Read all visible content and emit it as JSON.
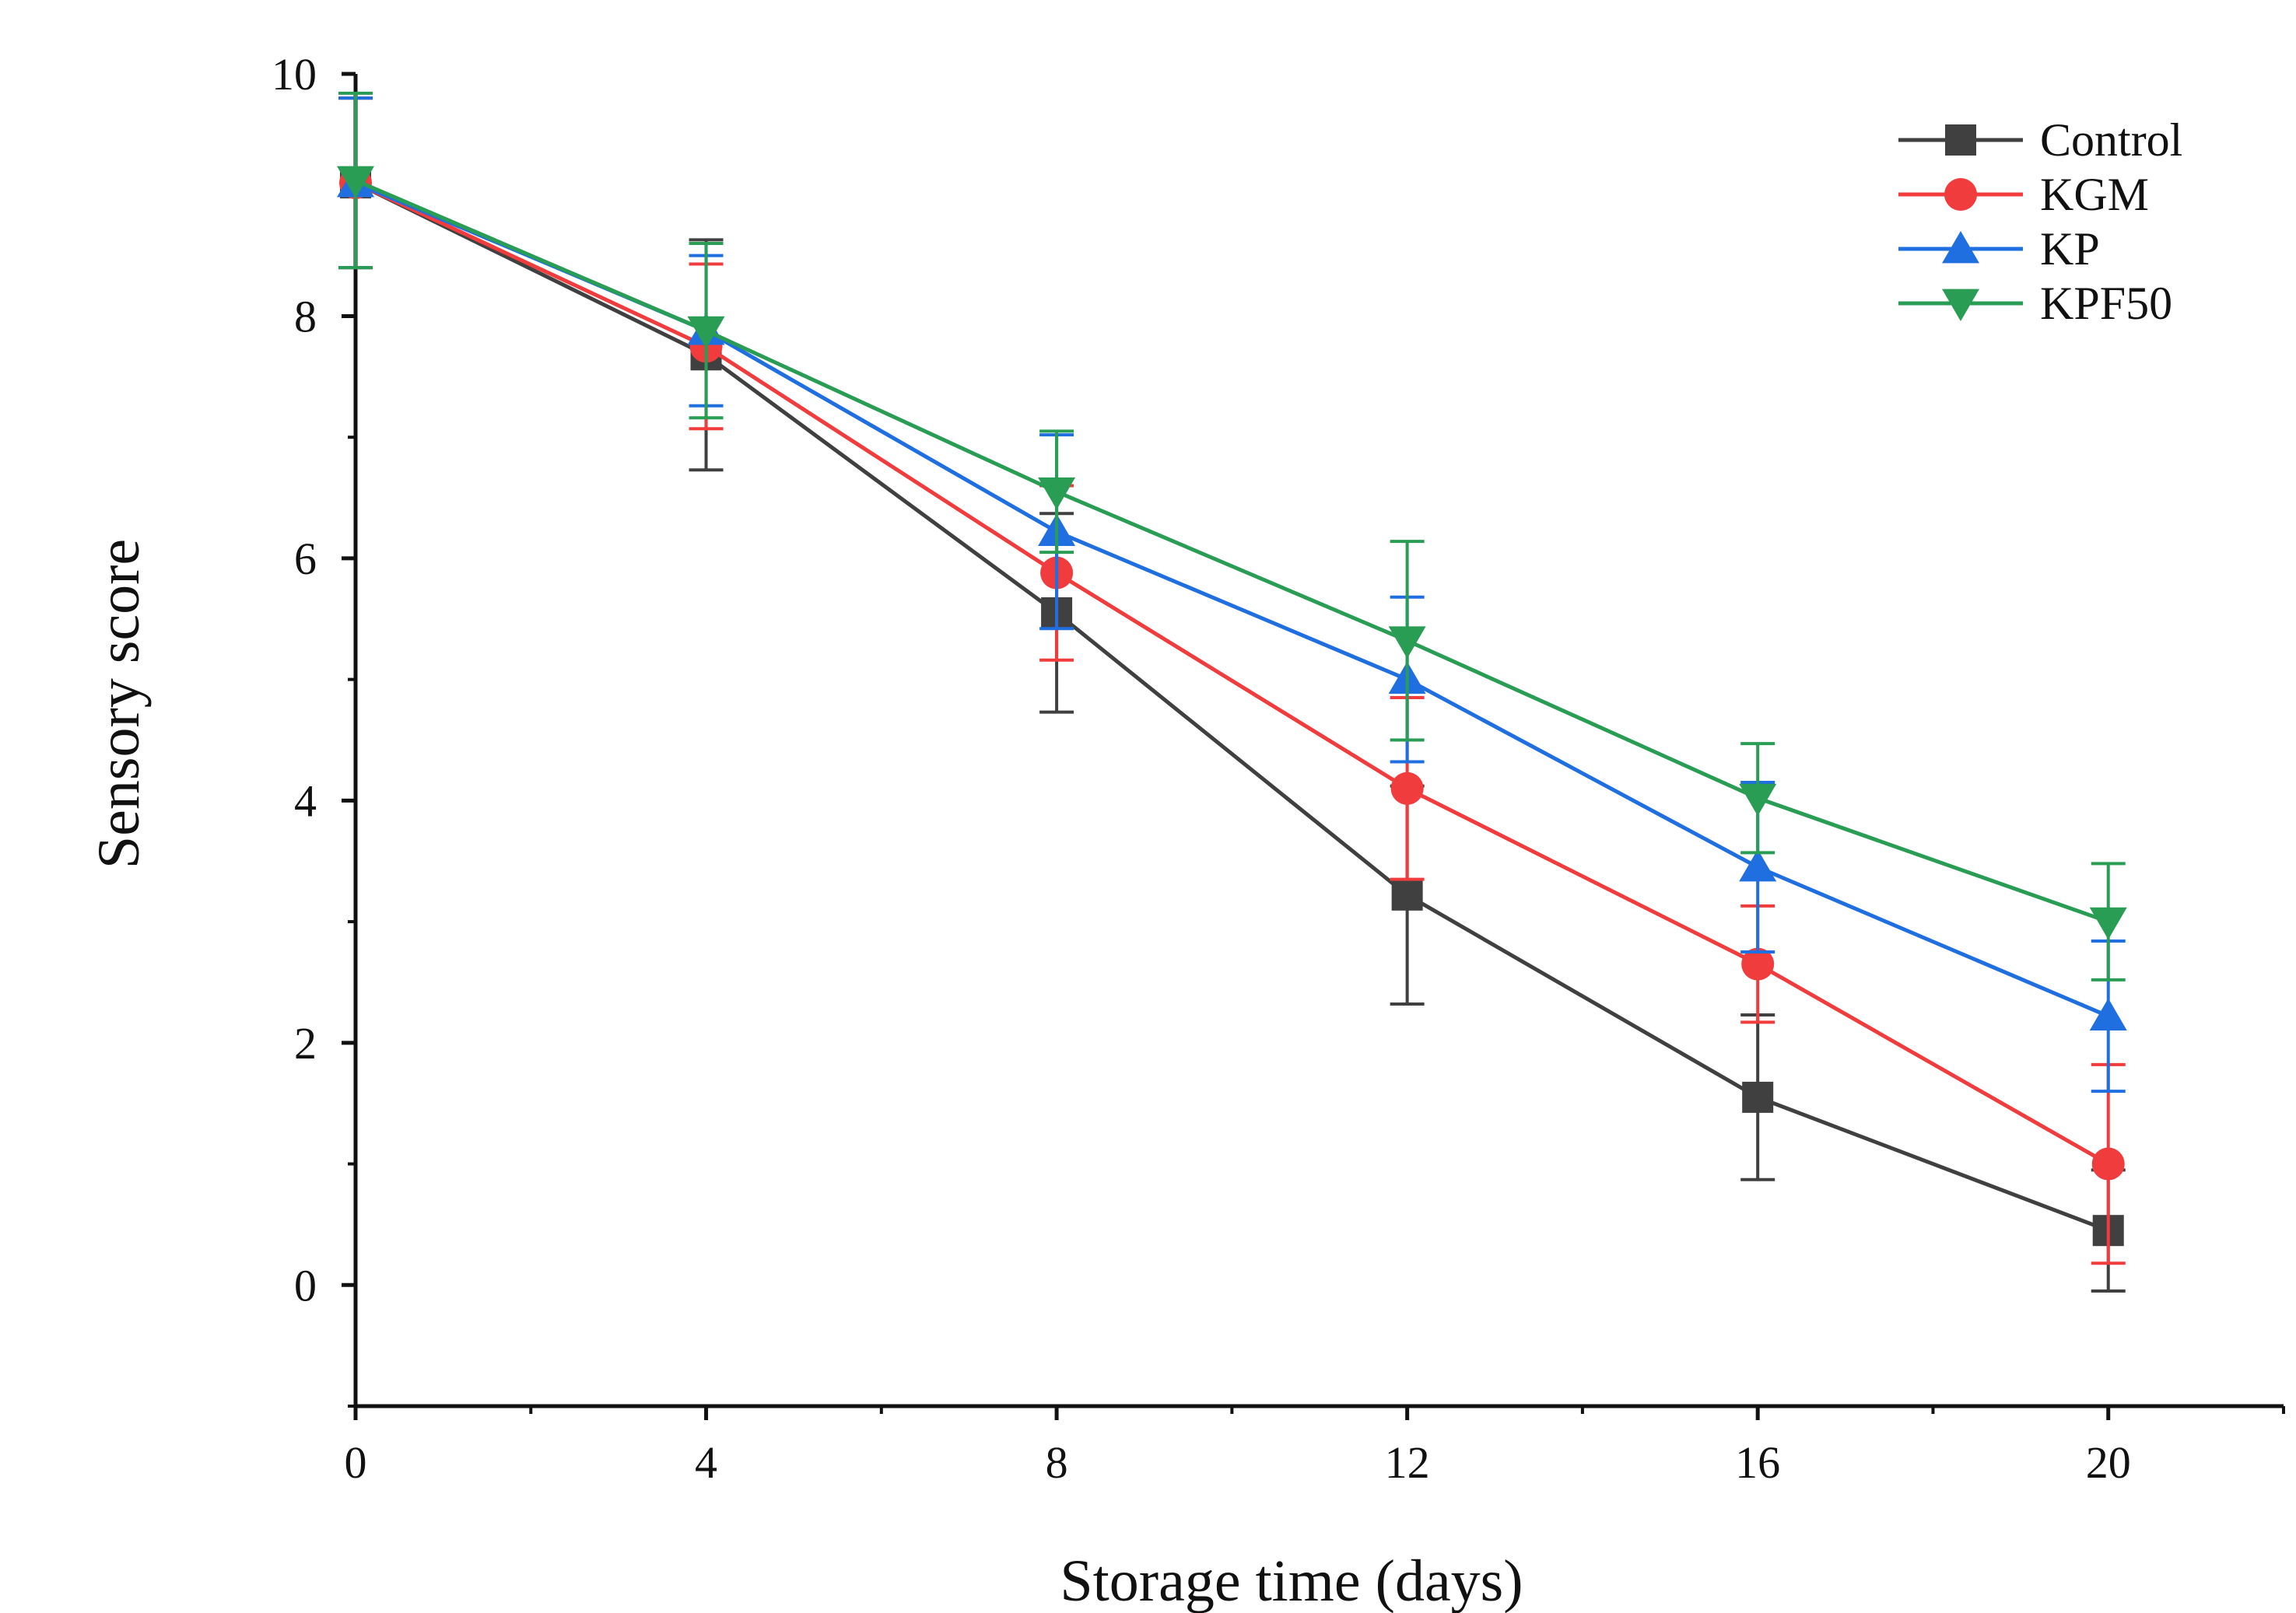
{
  "chart_data": {
    "type": "line",
    "title": "",
    "xlabel": "Storage time (days)",
    "ylabel": "Sensory score",
    "x": [
      0,
      4,
      8,
      12,
      16,
      20
    ],
    "xlim": [
      0,
      22
    ],
    "ylim": [
      -1,
      10
    ],
    "xticks": [
      0,
      4,
      8,
      12,
      16,
      20
    ],
    "yticks": [
      0,
      2,
      4,
      6,
      8,
      10
    ],
    "xtick_labels": [
      "0",
      "4",
      "8",
      "12",
      "16",
      "20"
    ],
    "ytick_labels": [
      "0",
      "2",
      "4",
      "6",
      "8",
      "10"
    ],
    "legend_position": "top-right",
    "series": [
      {
        "name": "Control",
        "color": "#404040",
        "marker": "square",
        "values": [
          9.1,
          7.68,
          5.55,
          3.22,
          1.55,
          0.45
        ],
        "errors": [
          0.7,
          0.95,
          0.82,
          0.9,
          0.68,
          0.5
        ]
      },
      {
        "name": "KGM",
        "color": "#f03c3c",
        "marker": "circle",
        "values": [
          9.1,
          7.75,
          5.88,
          4.1,
          2.65,
          1.0
        ],
        "errors": [
          0.7,
          0.68,
          0.72,
          0.75,
          0.48,
          0.82
        ]
      },
      {
        "name": "KP",
        "color": "#1f6fe0",
        "marker": "triangle-up",
        "values": [
          9.1,
          7.88,
          6.22,
          5.0,
          3.45,
          2.22
        ],
        "errors": [
          0.7,
          0.62,
          0.8,
          0.68,
          0.7,
          0.62
        ]
      },
      {
        "name": "KPF50",
        "color": "#2a9d55",
        "marker": "triangle-down",
        "values": [
          9.12,
          7.88,
          6.55,
          5.32,
          4.02,
          3.0
        ],
        "errors": [
          0.72,
          0.72,
          0.5,
          0.82,
          0.45,
          0.48
        ]
      }
    ]
  }
}
